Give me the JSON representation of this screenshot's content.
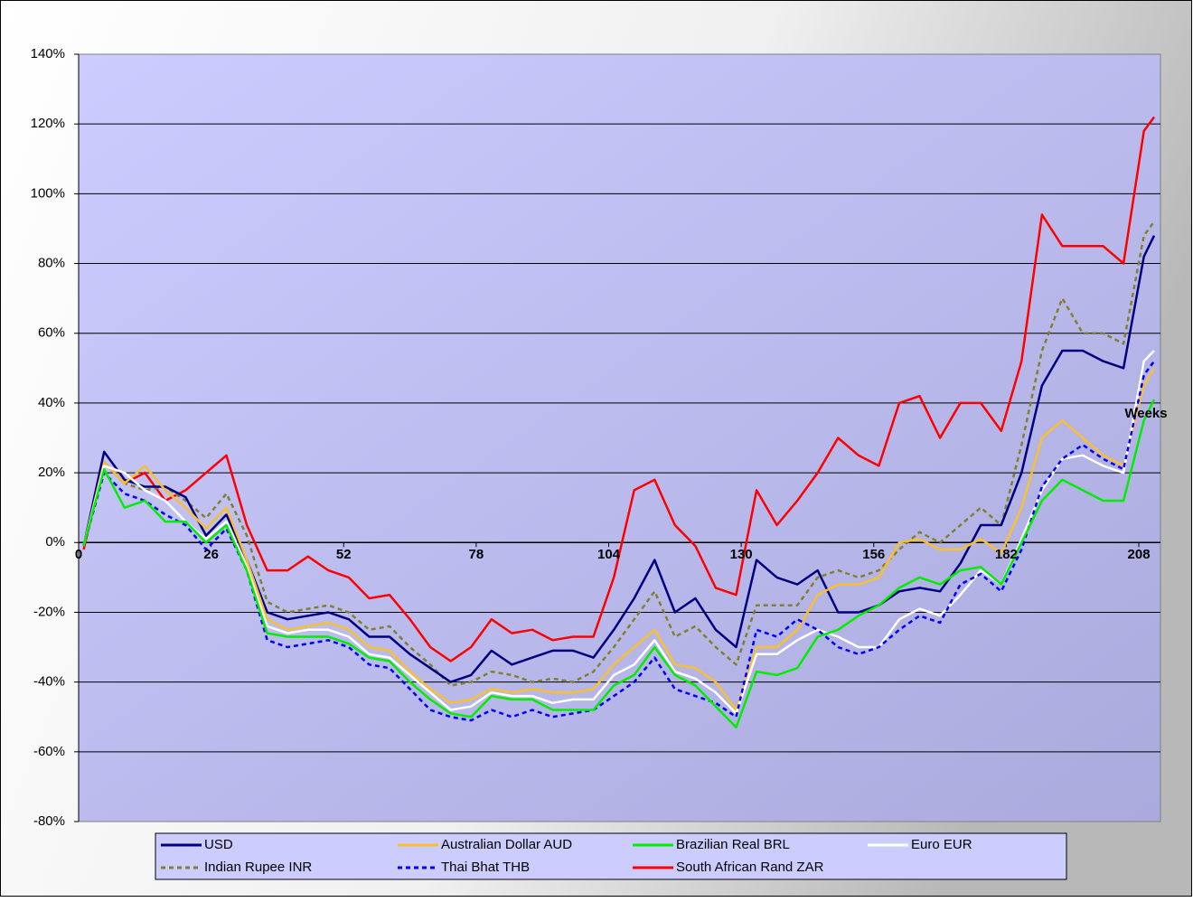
{
  "chart_data": {
    "type": "line",
    "x_label": "Weeks",
    "x": [
      1,
      5,
      9,
      13,
      17,
      21,
      25,
      29,
      33,
      37,
      41,
      45,
      49,
      53,
      57,
      61,
      65,
      69,
      73,
      77,
      81,
      85,
      89,
      93,
      97,
      101,
      105,
      109,
      113,
      117,
      121,
      125,
      129,
      133,
      137,
      141,
      145,
      149,
      153,
      157,
      161,
      165,
      169,
      173,
      177,
      181,
      185,
      189,
      193,
      197,
      201,
      205,
      209,
      211
    ],
    "xlim": [
      0,
      212.25
    ],
    "xticks": [
      0,
      26,
      52,
      78,
      104,
      130,
      156,
      182,
      208
    ],
    "ylim": [
      -80,
      140
    ],
    "yticks": [
      {
        "value": -80,
        "label": "-80%"
      },
      {
        "value": -60,
        "label": "-60%"
      },
      {
        "value": -40,
        "label": "-40%"
      },
      {
        "value": -20,
        "label": "-20%"
      },
      {
        "value": 0,
        "label": "0%"
      },
      {
        "value": 20,
        "label": "20%"
      },
      {
        "value": 40,
        "label": "40%"
      },
      {
        "value": 60,
        "label": "60%"
      },
      {
        "value": 80,
        "label": "80%"
      },
      {
        "value": 100,
        "label": "100%"
      },
      {
        "value": 120,
        "label": "120%"
      },
      {
        "value": 140,
        "label": "140%"
      }
    ],
    "grid": true,
    "legend": "bottom",
    "series": [
      {
        "name": "USD",
        "color": "#000080",
        "style": "solid",
        "values": [
          -1,
          26,
          18,
          16,
          16,
          13,
          2,
          8,
          -5,
          -20,
          -22,
          -21,
          -20,
          -22,
          -27,
          -27,
          -32,
          -36,
          -40,
          -38,
          -31,
          -35,
          -33,
          -31,
          -31,
          -33,
          -25,
          -16,
          -5,
          -20,
          -16,
          -25,
          -30,
          -5,
          -10,
          -12,
          -8,
          -20,
          -20,
          -18,
          -14,
          -13,
          -14,
          -6,
          5,
          5,
          20,
          45,
          55,
          55,
          52,
          50,
          82,
          88
        ]
      },
      {
        "name": "Australian Dollar AUD",
        "color": "#f8c030",
        "style": "solid",
        "values": [
          -1,
          23,
          17,
          22,
          15,
          10,
          4,
          10,
          -5,
          -22,
          -25,
          -24,
          -23,
          -25,
          -30,
          -31,
          -37,
          -42,
          -46,
          -45,
          -42,
          -43,
          -42,
          -43,
          -43,
          -42,
          -35,
          -30,
          -25,
          -35,
          -36,
          -40,
          -48,
          -30,
          -30,
          -25,
          -15,
          -12,
          -12,
          -10,
          0,
          1,
          -2,
          -2,
          1,
          -3,
          10,
          30,
          35,
          30,
          25,
          22,
          45,
          50
        ]
      },
      {
        "name": "Brazilian Real BRL",
        "color": "#00ee00",
        "style": "solid",
        "values": [
          -1,
          21,
          10,
          12,
          6,
          6,
          0,
          5,
          -8,
          -26,
          -27,
          -27,
          -27,
          -29,
          -33,
          -34,
          -40,
          -45,
          -49,
          -50,
          -44,
          -45,
          -45,
          -48,
          -48,
          -48,
          -41,
          -38,
          -30,
          -38,
          -41,
          -47,
          -53,
          -37,
          -38,
          -36,
          -27,
          -25,
          -21,
          -18,
          -13,
          -10,
          -12,
          -8,
          -7,
          -12,
          0,
          12,
          18,
          15,
          12,
          12,
          35,
          41
        ]
      },
      {
        "name": "Euro EUR",
        "color": "#ffffff",
        "style": "solid",
        "values": [
          -1,
          22,
          20,
          15,
          12,
          6,
          1,
          6,
          -7,
          -24,
          -26,
          -25,
          -25,
          -27,
          -32,
          -33,
          -38,
          -43,
          -48,
          -47,
          -43,
          -44,
          -44,
          -46,
          -45,
          -45,
          -38,
          -35,
          -28,
          -37,
          -39,
          -43,
          -49,
          -32,
          -32,
          -28,
          -25,
          -27,
          -30,
          -30,
          -22,
          -19,
          -21,
          -15,
          -8,
          -12,
          1,
          15,
          24,
          25,
          22,
          20,
          52,
          55
        ]
      },
      {
        "name": "Indian Rupee INR",
        "color": "#808030",
        "style": "dashed",
        "values": [
          -1,
          23,
          17,
          15,
          16,
          12,
          7,
          14,
          2,
          -17,
          -20,
          -19,
          -18,
          -20,
          -25,
          -24,
          -30,
          -35,
          -41,
          -40,
          -37,
          -38,
          -40,
          -39,
          -40,
          -37,
          -30,
          -22,
          -14,
          -27,
          -24,
          -30,
          -35,
          -18,
          -18,
          -18,
          -10,
          -8,
          -10,
          -8,
          -2,
          3,
          0,
          5,
          10,
          5,
          28,
          55,
          70,
          60,
          60,
          57,
          88,
          92
        ]
      },
      {
        "name": "Thai Bhat THB",
        "color": "#0000ff",
        "style": "dashed",
        "values": [
          -1,
          20,
          14,
          12,
          8,
          5,
          -2,
          4,
          -8,
          -28,
          -30,
          -29,
          -28,
          -30,
          -35,
          -36,
          -42,
          -48,
          -50,
          -51,
          -48,
          -50,
          -48,
          -50,
          -49,
          -48,
          -44,
          -40,
          -33,
          -42,
          -44,
          -46,
          -50,
          -25,
          -27,
          -22,
          -25,
          -30,
          -32,
          -30,
          -25,
          -21,
          -23,
          -12,
          -9,
          -14,
          -2,
          16,
          24,
          28,
          24,
          21,
          48,
          52
        ]
      },
      {
        "name": "South African Rand ZAR",
        "color": "#ff0000",
        "style": "solid",
        "values": [
          -2,
          23,
          17,
          20,
          12,
          15,
          20,
          25,
          5,
          -8,
          -8,
          -4,
          -8,
          -10,
          -16,
          -15,
          -22,
          -30,
          -34,
          -30,
          -22,
          -26,
          -25,
          -28,
          -27,
          -27,
          -10,
          15,
          18,
          5,
          -1,
          -13,
          -15,
          15,
          5,
          12,
          20,
          30,
          25,
          22,
          40,
          42,
          30,
          40,
          40,
          32,
          52,
          94,
          85,
          85,
          85,
          80,
          118,
          122
        ]
      }
    ]
  }
}
